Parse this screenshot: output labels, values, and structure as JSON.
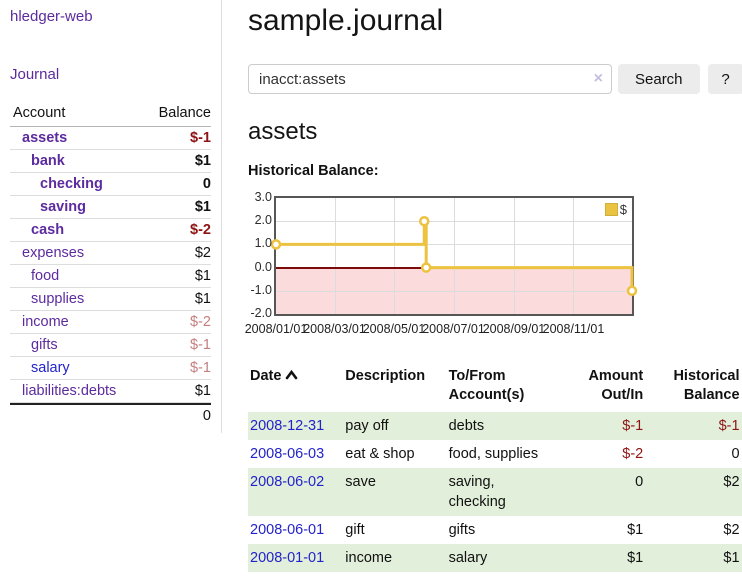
{
  "app": {
    "title": "hledger-web",
    "nav": {
      "journal": "Journal"
    }
  },
  "sidebar": {
    "header": {
      "account": "Account",
      "balance": "Balance"
    },
    "accounts": [
      {
        "name": "assets",
        "indent": 1,
        "emphasis": true,
        "name_color": "purple",
        "balance": "$-1",
        "balance_color": "red"
      },
      {
        "name": "bank",
        "indent": 2,
        "emphasis": true,
        "name_color": "purple",
        "balance": "$1",
        "balance_color": "black"
      },
      {
        "name": "checking",
        "indent": 3,
        "emphasis": true,
        "name_color": "purple",
        "balance": "0",
        "balance_color": "black"
      },
      {
        "name": "saving",
        "indent": 3,
        "emphasis": true,
        "name_color": "purple",
        "balance": "$1",
        "balance_color": "black"
      },
      {
        "name": "cash",
        "indent": 2,
        "emphasis": true,
        "name_color": "purple",
        "balance": "$-2",
        "balance_color": "red"
      },
      {
        "name": "expenses",
        "indent": 1,
        "emphasis": false,
        "name_color": "purple",
        "balance": "$2",
        "balance_color": "black"
      },
      {
        "name": "food",
        "indent": 2,
        "emphasis": false,
        "name_color": "purple",
        "balance": "$1",
        "balance_color": "black"
      },
      {
        "name": "supplies",
        "indent": 2,
        "emphasis": false,
        "name_color": "purple",
        "balance": "$1",
        "balance_color": "black"
      },
      {
        "name": "income",
        "indent": 1,
        "emphasis": false,
        "name_color": "purple",
        "balance": "$-2",
        "balance_color": "faded-red"
      },
      {
        "name": "gifts",
        "indent": 2,
        "emphasis": false,
        "name_color": "purple",
        "balance": "$-1",
        "balance_color": "faded-red"
      },
      {
        "name": "salary",
        "indent": 2,
        "emphasis": false,
        "name_color": "blue",
        "balance": "$-1",
        "balance_color": "faded-red"
      },
      {
        "name": "liabilities:debts",
        "indent": 1,
        "emphasis": false,
        "name_color": "purple",
        "balance": "$1",
        "balance_color": "black"
      }
    ],
    "total": "0"
  },
  "main": {
    "title": "sample.journal",
    "search": {
      "value": "inacct:assets",
      "clear_icon": "×",
      "search_button": "Search",
      "help_button": "?"
    },
    "account_heading": "assets",
    "chart_heading": "Historical Balance:"
  },
  "chart_data": {
    "type": "line",
    "title": "Historical Balance",
    "step": true,
    "legend": {
      "label": "$",
      "position": "top-right"
    },
    "series": [
      {
        "name": "$",
        "points": [
          {
            "date": "2008-01-01",
            "value": 1
          },
          {
            "date": "2008-06-01",
            "value": 2
          },
          {
            "date": "2008-06-03",
            "value": 0
          },
          {
            "date": "2008-12-31",
            "value": -1
          }
        ]
      }
    ],
    "x_range": {
      "start": "2008-01-01",
      "end": "2008-12-31"
    },
    "x_ticks": [
      {
        "label": "2008/01/01",
        "date": "2008-01-01"
      },
      {
        "label": "2008/03/01",
        "date": "2008-03-01"
      },
      {
        "label": "2008/05/01",
        "date": "2008-05-01"
      },
      {
        "label": "2008/07/01",
        "date": "2008-07-01"
      },
      {
        "label": "2008/09/01",
        "date": "2008-09-01"
      },
      {
        "label": "2008/11/01",
        "date": "2008-11-01"
      }
    ],
    "y_ticks": [
      {
        "label": "3.0",
        "value": 3
      },
      {
        "label": "2.0",
        "value": 2
      },
      {
        "label": "1.0",
        "value": 1
      },
      {
        "label": "0.0",
        "value": 0
      },
      {
        "label": "-1.0",
        "value": -1
      },
      {
        "label": "-2.0",
        "value": -2
      }
    ],
    "ylim": [
      -2,
      3
    ],
    "grid": true,
    "line_color": "#edc240",
    "negative_region_color": "#fbdbdb",
    "zero_line_color": "#7c0a0a"
  },
  "register": {
    "headers": {
      "date": "Date",
      "description": "Description",
      "accounts": "To/From Account(s)",
      "amount": "Amount Out/In",
      "balance": "Historical Balance"
    },
    "sort_icon": "chevron-up-icon",
    "rows": [
      {
        "date": "2008-12-31",
        "description": "pay off",
        "accounts": "debts",
        "amount": "$-1",
        "amount_neg": true,
        "balance": "$-1",
        "balance_neg": true
      },
      {
        "date": "2008-06-03",
        "description": "eat & shop",
        "accounts": "food, supplies",
        "amount": "$-2",
        "amount_neg": true,
        "balance": "0",
        "balance_neg": false
      },
      {
        "date": "2008-06-02",
        "description": "save",
        "accounts": "saving, checking",
        "amount": "0",
        "amount_neg": false,
        "balance": "$2",
        "balance_neg": false
      },
      {
        "date": "2008-06-01",
        "description": "gift",
        "accounts": "gifts",
        "amount": "$1",
        "amount_neg": false,
        "balance": "$2",
        "balance_neg": false
      },
      {
        "date": "2008-01-01",
        "description": "income",
        "accounts": "salary",
        "amount": "$1",
        "amount_neg": false,
        "balance": "$1",
        "balance_neg": false
      }
    ]
  },
  "colors": {
    "purple_link": "#5c2b9e",
    "blue_link": "#2323cc",
    "negative": "#8e1414",
    "negative_faded": "#c47e7e",
    "row_stripe": "#e2efda",
    "chart_line": "#edc240",
    "negative_region": "#fbdbdb",
    "zero_line": "#7c0a0a"
  }
}
